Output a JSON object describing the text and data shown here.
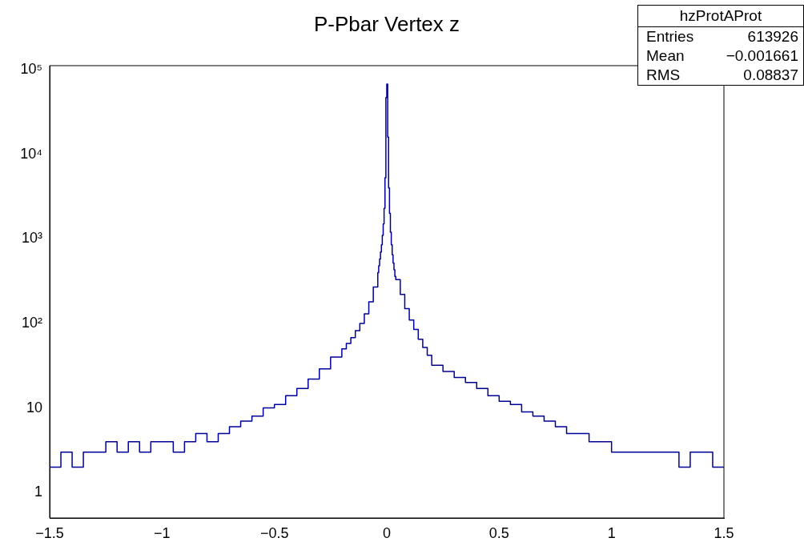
{
  "chart_data": {
    "type": "histogram",
    "title": "P-Pbar Vertex z",
    "bins": [
      -1.5,
      -1.45,
      -1.4,
      -1.35,
      -1.3,
      -1.25,
      -1.2,
      -1.15,
      -1.1,
      -1.05,
      -1.0,
      -0.95,
      -0.9,
      -0.85,
      -0.8,
      -0.75,
      -0.7,
      -0.65,
      -0.6,
      -0.55,
      -0.5,
      -0.45,
      -0.4,
      -0.35,
      -0.3,
      -0.25,
      -0.2,
      -0.18,
      -0.16,
      -0.14,
      -0.12,
      -0.1,
      -0.08,
      -0.06,
      -0.04,
      -0.036,
      -0.032,
      -0.028,
      -0.024,
      -0.02,
      -0.016,
      -0.012,
      -0.008,
      -0.004,
      0,
      0.004,
      0.008,
      0.012,
      0.016,
      0.02,
      0.024,
      0.028,
      0.032,
      0.036,
      0.04,
      0.06,
      0.08,
      0.1,
      0.12,
      0.14,
      0.16,
      0.18,
      0.2,
      0.25,
      0.3,
      0.35,
      0.4,
      0.45,
      0.5,
      0.55,
      0.6,
      0.65,
      0.7,
      0.75,
      0.8,
      0.85,
      0.9,
      0.95,
      1.0,
      1.05,
      1.1,
      1.15,
      1.2,
      1.25,
      1.3,
      1.35,
      1.4,
      1.45,
      1.5
    ],
    "values": [
      2,
      3,
      2,
      3,
      3,
      4,
      3,
      4,
      3,
      4,
      4,
      3,
      4,
      5,
      4,
      5,
      6,
      7,
      8,
      10,
      11,
      14,
      17,
      22,
      29,
      40,
      50,
      58,
      68,
      82,
      100,
      130,
      180,
      270,
      400,
      480,
      580,
      700,
      850,
      1100,
      1500,
      2300,
      5300,
      47000,
      68000,
      16000,
      4000,
      2000,
      1200,
      850,
      650,
      520,
      430,
      360,
      330,
      220,
      150,
      110,
      85,
      65,
      52,
      42,
      32,
      27,
      23,
      20,
      17,
      14,
      12,
      11,
      9,
      8,
      7,
      6,
      5,
      5,
      4,
      4,
      3,
      3,
      3,
      3,
      3,
      3,
      2,
      3,
      3,
      2
    ],
    "color": "#000099",
    "log": "y",
    "legend": false,
    "xlim": [
      -1.5,
      1.5
    ],
    "xticks": [
      {
        "value": -1.5,
        "label": "−1.5"
      },
      {
        "value": -1,
        "label": "−1"
      },
      {
        "value": -0.5,
        "label": "−0.5"
      },
      0,
      0.5,
      1,
      1.5
    ],
    "ylim": [
      0.5,
      112000
    ],
    "yticks": [
      1,
      10,
      {
        "value": 100,
        "label": "10²"
      },
      {
        "value": 1000,
        "label": "10³"
      },
      {
        "value": 10000,
        "label": "10⁴"
      },
      {
        "value": 100000,
        "label": "10⁵"
      }
    ],
    "annotations": [
      "hzProtAProt",
      "Entries",
      "613926",
      "Mean",
      "−0.001661",
      "RMS",
      "0.08837"
    ]
  }
}
